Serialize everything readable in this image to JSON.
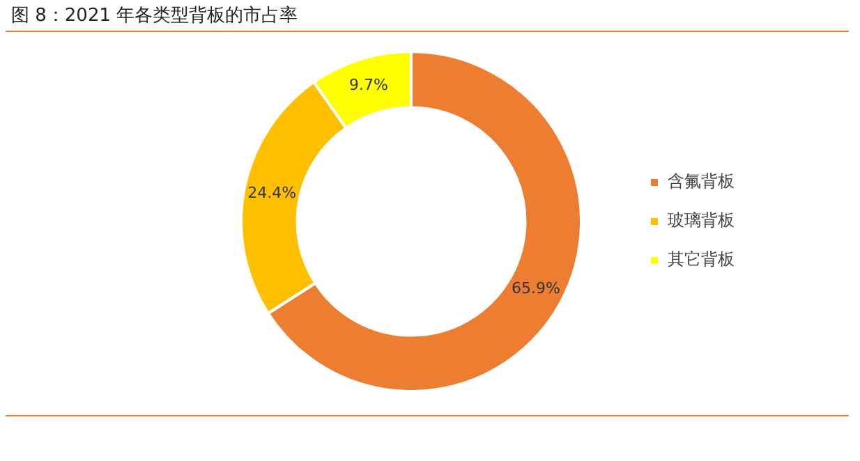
{
  "chart_data": {
    "type": "donut",
    "title": "图 8：2021 年各类型背板的市占率",
    "categories": [
      "含氟背板",
      "玻璃背板",
      "其它背板"
    ],
    "values": [
      65.9,
      24.4,
      9.7
    ],
    "colors": [
      "#ed7d31",
      "#ffc000",
      "#ffff00"
    ],
    "value_labels": [
      "65.9%",
      "24.4%",
      "9.7%"
    ],
    "legend": "right"
  }
}
